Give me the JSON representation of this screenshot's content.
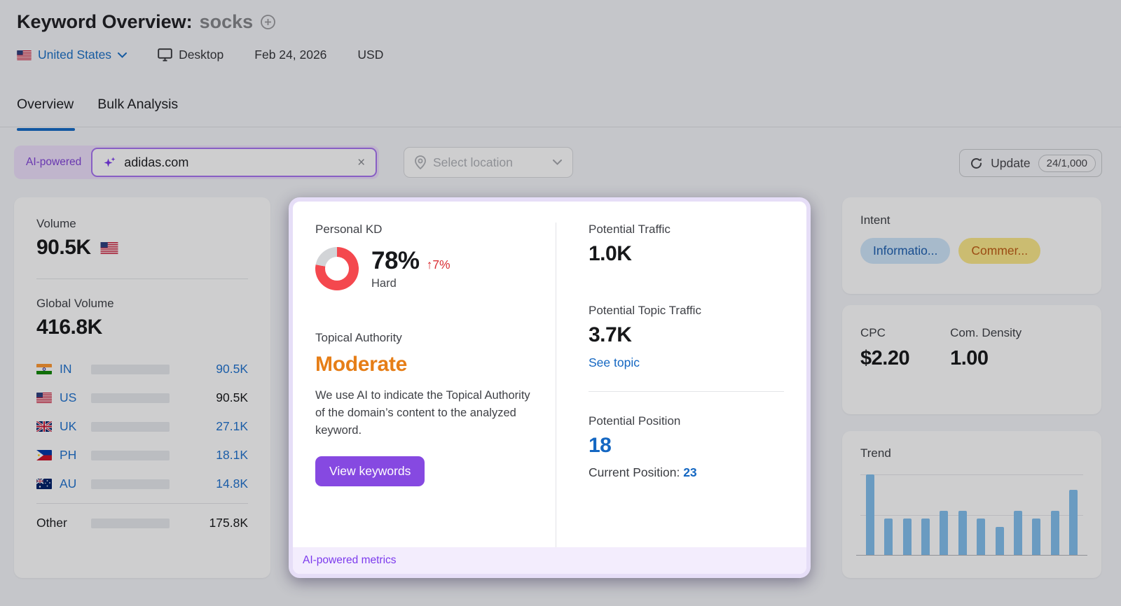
{
  "header": {
    "title": "Keyword Overview:",
    "keyword": "socks",
    "country": "United States",
    "device": "Desktop",
    "date": "Feb 24, 2026",
    "currency": "USD"
  },
  "tabs": [
    {
      "label": "Overview",
      "active": true
    },
    {
      "label": "Bulk Analysis",
      "active": false
    }
  ],
  "toolbar": {
    "ai_label": "AI-powered",
    "domain_value": "adidas.com",
    "clear_glyph": "×",
    "location_placeholder": "Select location",
    "update_label": "Update",
    "update_quota": "24/1,000"
  },
  "volume_card": {
    "volume_label": "Volume",
    "volume_value": "90.5K",
    "global_label": "Global Volume",
    "global_value": "416.8K",
    "countries": [
      {
        "code": "IN",
        "value": "90.5K",
        "pct": 21,
        "link": true,
        "dark": false
      },
      {
        "code": "US",
        "value": "90.5K",
        "pct": 21,
        "link": false,
        "dark": true
      },
      {
        "code": "UK",
        "value": "27.1K",
        "pct": 6,
        "link": true,
        "dark": false
      },
      {
        "code": "PH",
        "value": "18.1K",
        "pct": 4.5,
        "link": true,
        "dark": false
      },
      {
        "code": "AU",
        "value": "14.8K",
        "pct": 3.5,
        "link": true,
        "dark": false
      }
    ],
    "other": {
      "label": "Other",
      "value": "175.8K",
      "pct": 42
    }
  },
  "ai_panel": {
    "kd": {
      "label": "Personal KD",
      "percent": 78,
      "percent_label": "78%",
      "change": "↑7%",
      "difficulty": "Hard"
    },
    "topical": {
      "label": "Topical Authority",
      "value": "Moderate",
      "description": "We use AI to indicate the Topical Authority of the domain’s content to the analyzed keyword.",
      "button": "View keywords"
    },
    "potential_traffic": {
      "label": "Potential Traffic",
      "value": "1.0K"
    },
    "potential_topic_traffic": {
      "label": "Potential Topic Traffic",
      "value": "3.7K",
      "link": "See topic"
    },
    "potential_position": {
      "label": "Potential Position",
      "value": "18",
      "current_label": "Current Position: ",
      "current_value": "23"
    },
    "footer": "AI-powered metrics"
  },
  "intent_card": {
    "label": "Intent",
    "badges": [
      {
        "text": "Informatio...",
        "type": "informational"
      },
      {
        "text": "Commer...",
        "type": "commercial"
      }
    ]
  },
  "cpc_card": {
    "cpc_label": "CPC",
    "cpc_value": "$2.20",
    "density_label": "Com. Density",
    "density_value": "1.00"
  },
  "trend_card": {
    "label": "Trend",
    "bars_relative_pct": [
      100,
      45,
      45,
      45,
      55,
      55,
      45,
      35,
      55,
      45,
      55,
      81
    ]
  },
  "chart_data": [
    {
      "type": "bar",
      "title": "Trend",
      "values_relative_pct": [
        100,
        45,
        45,
        45,
        55,
        55,
        45,
        35,
        55,
        45,
        55,
        81
      ],
      "xlabel": "",
      "ylabel": "",
      "tick_labels": "none",
      "gridlines": 2,
      "legend": "none"
    },
    {
      "type": "bar",
      "title": "Volume by country",
      "categories": [
        "IN",
        "US",
        "UK",
        "PH",
        "AU",
        "Other"
      ],
      "values": [
        "90.5K",
        "90.5K",
        "27.1K",
        "18.1K",
        "14.8K",
        "175.8K"
      ],
      "fill_pct": [
        21,
        21,
        6,
        4.5,
        3.5,
        42
      ]
    },
    {
      "type": "pie",
      "title": "Personal KD donut",
      "labels": [
        "KD 78%",
        "remainder"
      ],
      "values": [
        78,
        22
      ]
    }
  ],
  "colors": {
    "accent_purple": "#8649e1",
    "ai_purple": "#7c3aed",
    "header_link_blue": "#1a70c6",
    "panel_blue": "#1467c2",
    "tab_underline": "#146bc6",
    "kd_red": "#f4484e",
    "kd_track": "#d2d4d7",
    "change_red": "#da2f35",
    "moderate_orange": "#e67e17",
    "bar_light_blue": "#2bb3ff",
    "bar_dark_blue": "#1565ab",
    "trend_bar_blue": "#83c0ee",
    "informational_badge": "#cfe6fb",
    "commercial_badge": "#fce98a"
  }
}
